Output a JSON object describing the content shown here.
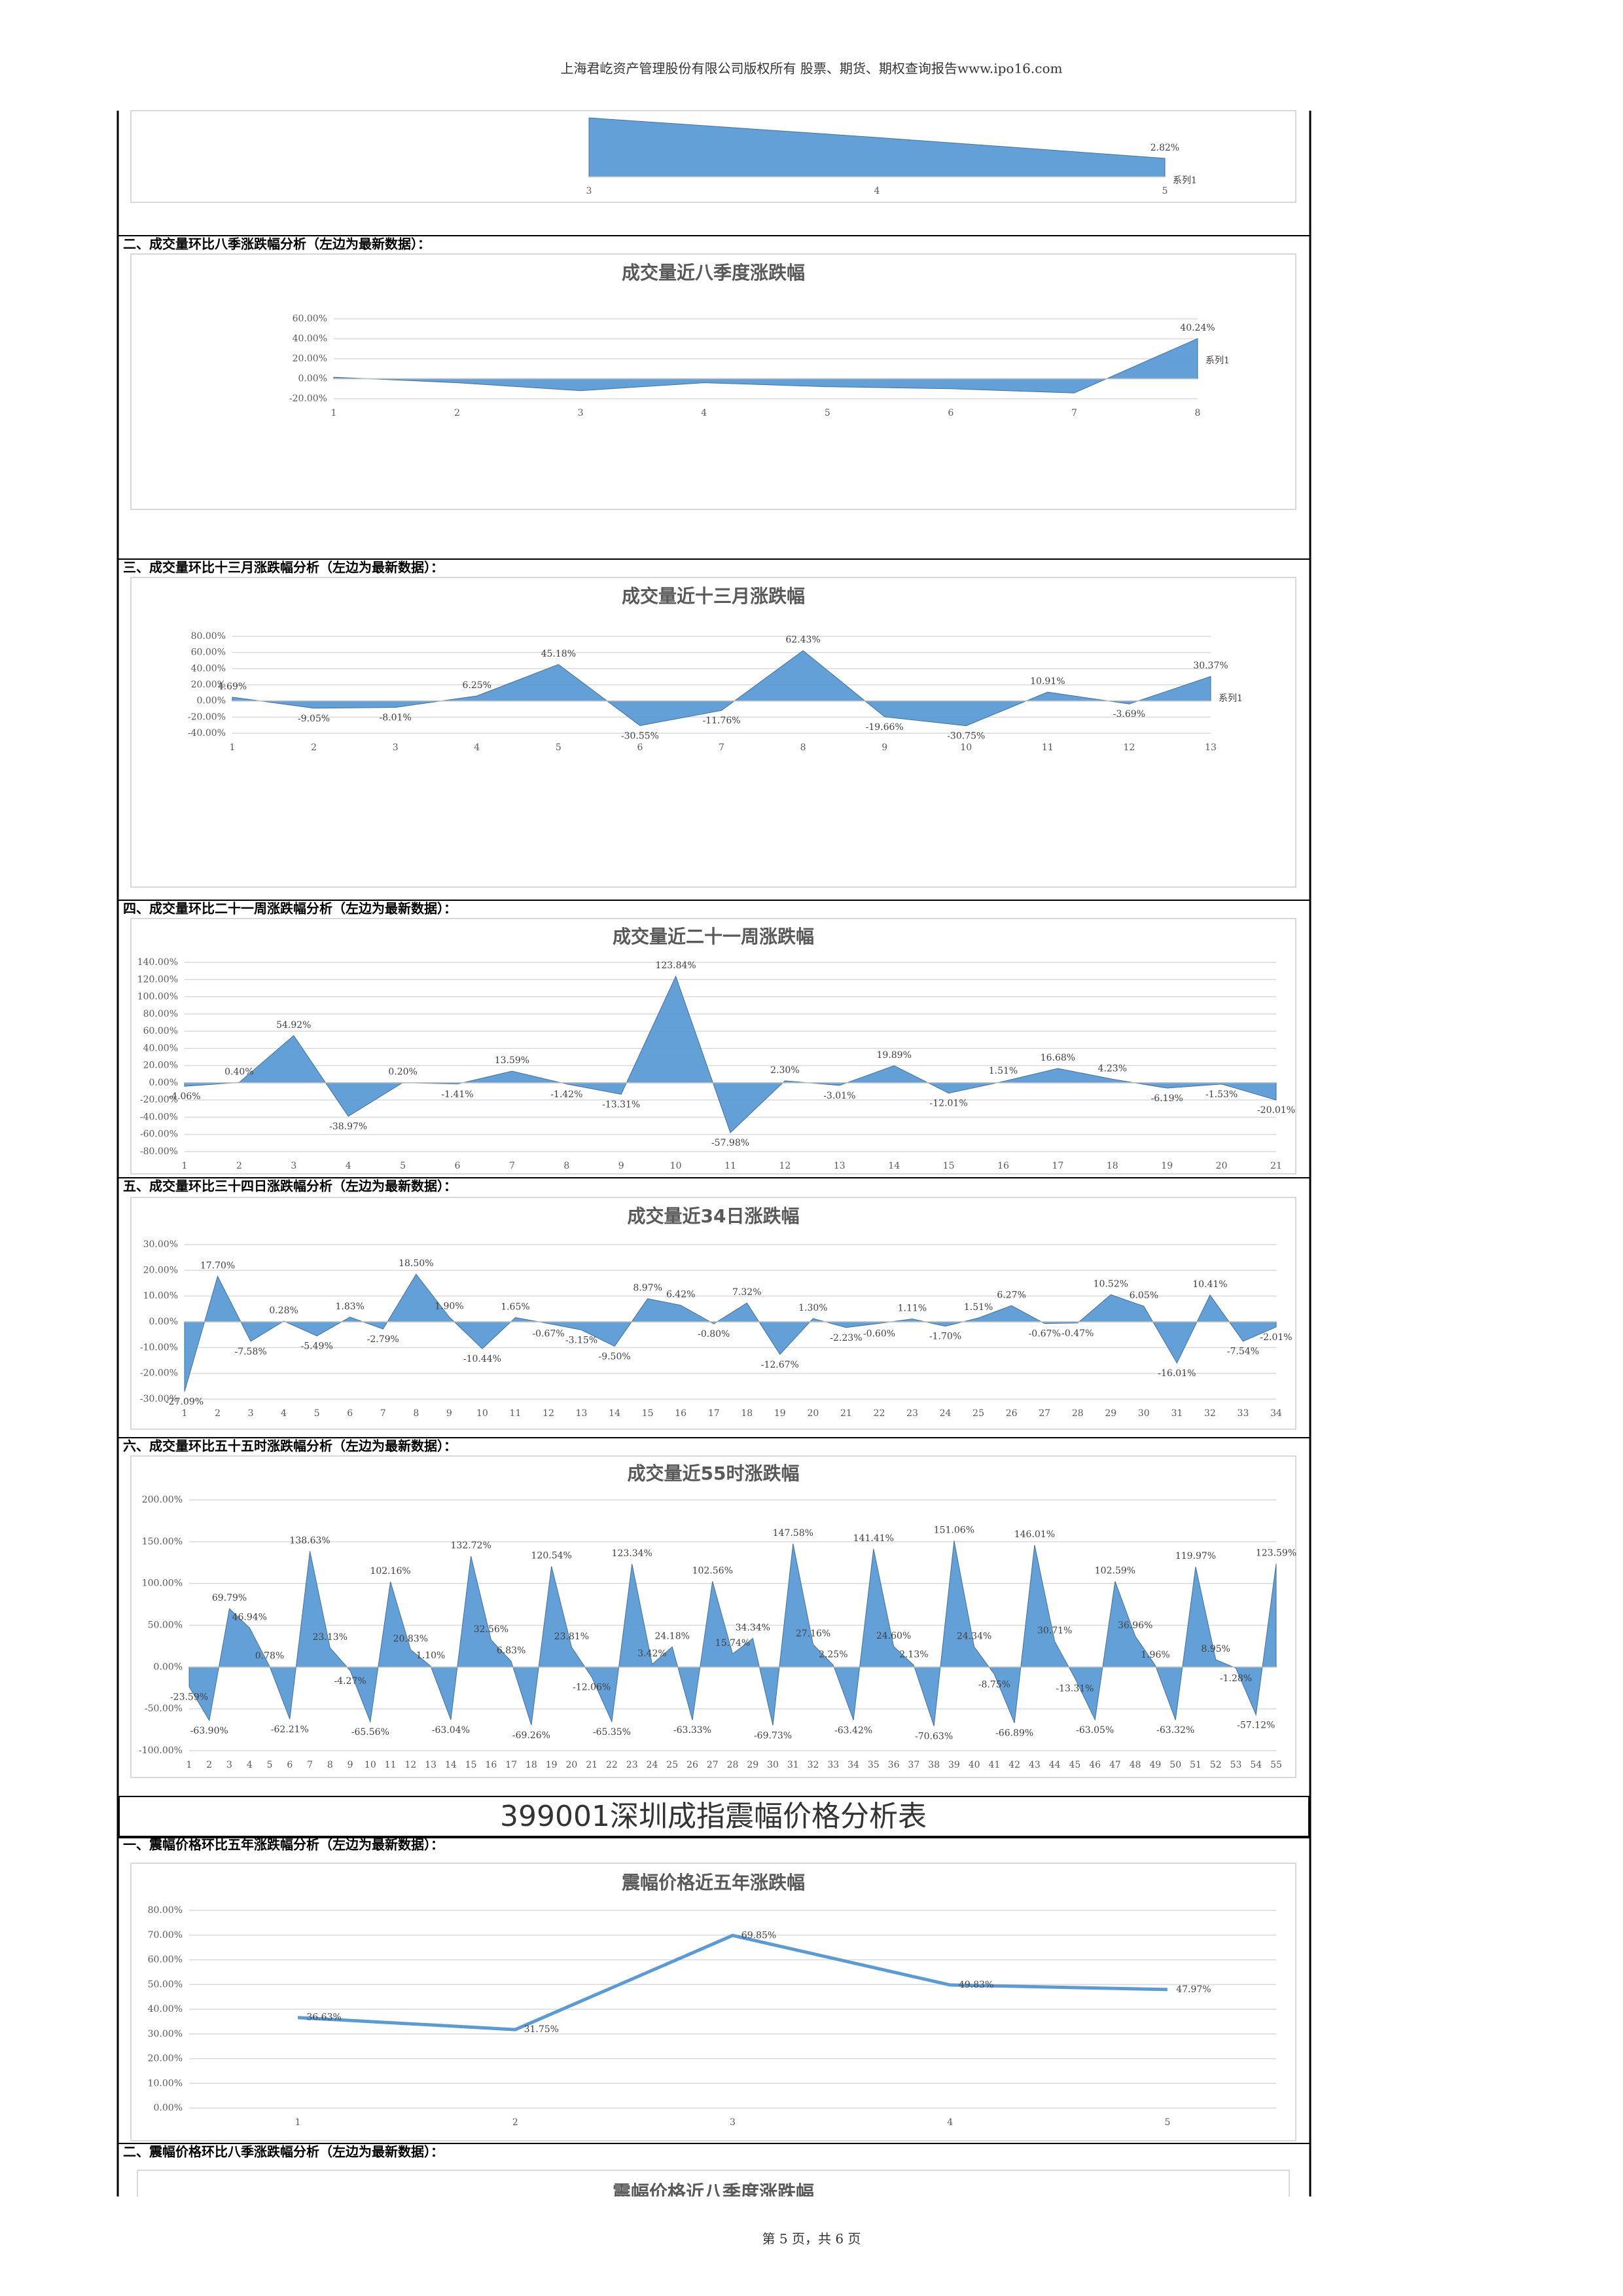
{
  "header": "上海君屹资产管理股份有限公司版权所有 股票、期货、期权查询报告www.ipo16.com",
  "sections": [
    "二、成交量环比八季涨跌幅分析（左边为最新数据）：",
    "三、成交量环比十三月涨跌幅分析（左边为最新数据）：",
    "四、成交量环比二十一周涨跌幅分析（左边为最新数据）：",
    "五、成交量环比三十四日涨跌幅分析（左边为最新数据）：",
    "六、成交量环比五十五时涨跌幅分析（左边为最新数据）：",
    "一、震幅价格环比五年涨跌幅分析（左边为最新数据）：",
    "二、震幅价格环比八季涨跌幅分析（左边为最新数据）："
  ],
  "report_title": "399001深圳成指震幅价格分析表",
  "footer": "第 5 页，共 6 页",
  "chart_data": [
    {
      "type": "area",
      "series_name": "系列1",
      "color": "#5b9bd5",
      "categories": [
        "3",
        "4",
        "5"
      ],
      "values": [
        9,
        6,
        2.82
      ],
      "value_labels": [
        null,
        null,
        "2.82%"
      ]
    },
    {
      "type": "area",
      "title": "成交量近八季度涨跌幅",
      "series_name": "系列1",
      "color": "#5b9bd5",
      "categories": [
        "1",
        "2",
        "3",
        "4",
        "5",
        "6",
        "7",
        "8"
      ],
      "values": [
        1.6,
        -4,
        -12,
        -4,
        -8,
        -10,
        -14.3,
        40.24
      ],
      "value_labels": [
        null,
        null,
        null,
        null,
        null,
        null,
        null,
        "40.24%"
      ],
      "ylim": [
        -20,
        60
      ],
      "yticks": [
        {
          "value": -20,
          "label": "-20.00%"
        },
        {
          "value": 0,
          "label": "0.00%"
        },
        {
          "value": 20,
          "label": "20.00%"
        },
        {
          "value": 40,
          "label": "40.00%"
        },
        {
          "value": 60,
          "label": "60.00%"
        }
      ]
    },
    {
      "type": "area",
      "title": "成交量近十三月涨跌幅",
      "series_name": "系列1",
      "color": "#5b9bd5",
      "categories": [
        "1",
        "2",
        "3",
        "4",
        "5",
        "6",
        "7",
        "8",
        "9",
        "10",
        "11",
        "12",
        "13"
      ],
      "values": [
        4.69,
        -9.05,
        -8.01,
        6.25,
        45.18,
        -30.55,
        -11.76,
        62.43,
        -19.66,
        -30.75,
        10.91,
        -3.69,
        30.37
      ],
      "value_labels": [
        "4.69%",
        "-9.05%",
        "-8.01%",
        "6.25%",
        "45.18%",
        "-30.55%",
        "-11.76%",
        "62.43%",
        "-19.66%",
        "-30.75%",
        "10.91%",
        "-3.69%",
        "30.37%"
      ],
      "ylim": [
        -40,
        80
      ],
      "yticks": [
        {
          "value": -40,
          "label": "-40.00%"
        },
        {
          "value": -20,
          "label": "-20.00%"
        },
        {
          "value": 0,
          "label": "0.00%"
        },
        {
          "value": 20,
          "label": "20.00%"
        },
        {
          "value": 40,
          "label": "40.00%"
        },
        {
          "value": 60,
          "label": "60.00%"
        },
        {
          "value": 80,
          "label": "80.00%"
        }
      ]
    },
    {
      "type": "area",
      "title": "成交量近二十一周涨跌幅",
      "color": "#5b9bd5",
      "categories": [
        "1",
        "2",
        "3",
        "4",
        "5",
        "6",
        "7",
        "8",
        "9",
        "10",
        "11",
        "12",
        "13",
        "14",
        "15",
        "16",
        "17",
        "18",
        "19",
        "20",
        "21"
      ],
      "values": [
        -4.06,
        0.4,
        54.92,
        -38.97,
        0.2,
        -1.41,
        13.59,
        -1.42,
        -13.31,
        123.84,
        -57.98,
        2.3,
        -3.01,
        19.89,
        -12.01,
        1.51,
        16.68,
        4.23,
        -6.19,
        -1.53,
        -20.01
      ],
      "value_labels": [
        "-4.06%",
        "0.40%",
        "54.92%",
        "-38.97%",
        "0.20%",
        "-1.41%",
        "13.59%",
        "-1.42%",
        "-13.31%",
        "123.84%",
        "-57.98%",
        "2.30%",
        "-3.01%",
        "19.89%",
        "-12.01%",
        "1.51%",
        "16.68%",
        "4.23%",
        "-6.19%",
        "-1.53%",
        "-20.01%"
      ],
      "ylim": [
        -80,
        140
      ],
      "yticks": [
        {
          "value": -80,
          "label": "-80.00%"
        },
        {
          "value": -60,
          "label": "-60.00%"
        },
        {
          "value": -40,
          "label": "-40.00%"
        },
        {
          "value": -20,
          "label": "-20.00%"
        },
        {
          "value": 0,
          "label": "0.00%"
        },
        {
          "value": 20,
          "label": "20.00%"
        },
        {
          "value": 40,
          "label": "40.00%"
        },
        {
          "value": 60,
          "label": "60.00%"
        },
        {
          "value": 80,
          "label": "80.00%"
        },
        {
          "value": 100,
          "label": "100.00%"
        },
        {
          "value": 120,
          "label": "120.00%"
        },
        {
          "value": 140,
          "label": "140.00%"
        }
      ]
    },
    {
      "type": "area",
      "title": "成交量近34日涨跌幅",
      "color": "#5b9bd5",
      "categories": [
        "1",
        "2",
        "3",
        "4",
        "5",
        "6",
        "7",
        "8",
        "9",
        "10",
        "11",
        "12",
        "13",
        "14",
        "15",
        "16",
        "17",
        "18",
        "19",
        "20",
        "21",
        "22",
        "23",
        "24",
        "25",
        "26",
        "27",
        "28",
        "29",
        "30",
        "31",
        "32",
        "33",
        "34"
      ],
      "values": [
        -27.09,
        17.7,
        -7.58,
        0.28,
        -5.49,
        1.83,
        -2.79,
        18.5,
        1.9,
        -10.44,
        1.65,
        -0.67,
        -3.15,
        -9.5,
        8.97,
        6.42,
        -0.8,
        7.32,
        -12.67,
        1.3,
        -2.23,
        -0.6,
        1.11,
        -1.7,
        1.51,
        6.27,
        -0.67,
        -0.47,
        10.52,
        6.05,
        -16.01,
        10.41,
        -7.54,
        -2.01
      ],
      "value_labels": [
        "-27.09%",
        "17.70%",
        "-7.58%",
        "0.28%",
        "-5.49%",
        "1.83%",
        "-2.79%",
        "18.50%",
        "1.90%",
        "-10.44%",
        "1.65%",
        "-0.67%",
        "-3.15%",
        "-9.50%",
        "8.97%",
        "6.42%",
        "-0.80%",
        "7.32%",
        "-12.67%",
        "1.30%",
        "-2.23%",
        "-0.60%",
        "1.11%",
        "-1.70%",
        "1.51%",
        "6.27%",
        "-0.67%",
        "-0.47%",
        "10.52%",
        "6.05%",
        "-16.01%",
        "10.41%",
        "-7.54%",
        "-2.01%"
      ],
      "ylim": [
        -30,
        30
      ],
      "yticks": [
        {
          "value": -30,
          "label": "-30.00%"
        },
        {
          "value": -20,
          "label": "-20.00%"
        },
        {
          "value": -10,
          "label": "-10.00%"
        },
        {
          "value": 0,
          "label": "0.00%"
        },
        {
          "value": 10,
          "label": "10.00%"
        },
        {
          "value": 20,
          "label": "20.00%"
        },
        {
          "value": 30,
          "label": "30.00%"
        }
      ]
    },
    {
      "type": "area",
      "title": "成交量近55时涨跌幅",
      "color": "#5b9bd5",
      "categories": [
        "1",
        "2",
        "3",
        "4",
        "5",
        "6",
        "7",
        "8",
        "9",
        "10",
        "11",
        "12",
        "13",
        "14",
        "15",
        "16",
        "17",
        "18",
        "19",
        "20",
        "21",
        "22",
        "23",
        "24",
        "25",
        "26",
        "27",
        "28",
        "29",
        "30",
        "31",
        "32",
        "33",
        "34",
        "35",
        "36",
        "37",
        "38",
        "39",
        "40",
        "41",
        "42",
        "43",
        "44",
        "45",
        "46",
        "47",
        "48",
        "49",
        "50",
        "51",
        "52",
        "53",
        "54",
        "55"
      ],
      "values": [
        -23.59,
        -63.9,
        69.79,
        46.94,
        0.78,
        -62.21,
        138.63,
        23.13,
        -4.27,
        -65.56,
        102.16,
        20.83,
        1.1,
        -63.04,
        132.72,
        32.56,
        6.83,
        -69.26,
        120.54,
        23.81,
        -12.06,
        -65.35,
        123.34,
        3.42,
        24.18,
        -63.33,
        102.56,
        15.74,
        34.34,
        -69.73,
        147.58,
        27.16,
        2.25,
        -63.42,
        141.41,
        24.6,
        2.13,
        -70.63,
        151.06,
        24.34,
        -8.75,
        -66.89,
        146.01,
        30.71,
        -13.31,
        -63.05,
        102.59,
        36.96,
        1.96,
        -63.32,
        119.97,
        8.95,
        -1.28,
        -57.12,
        123.59
      ],
      "value_labels": [
        "-23.59%",
        "-63.90%",
        "69.79%",
        "46.94%",
        "0.78%",
        "-62.21%",
        "138.63%",
        "23.13%",
        "-4.27%",
        "-65.56%",
        "102.16%",
        "20.83%",
        "1.10%",
        "-63.04%",
        "132.72%",
        "32.56%",
        "6.83%",
        "-69.26%",
        "120.54%",
        "23.81%",
        "-12.06%",
        "-65.35%",
        "123.34%",
        "3.42%",
        "24.18%",
        "-63.33%",
        "102.56%",
        "15.74%",
        "34.34%",
        "-69.73%",
        "147.58%",
        "27.16%",
        "2.25%",
        "-63.42%",
        "141.41%",
        "24.60%",
        "2.13%",
        "-70.63%",
        "151.06%",
        "24.34%",
        "-8.75%",
        "-66.89%",
        "146.01%",
        "30.71%",
        "-13.31%",
        "-63.05%",
        "102.59%",
        "36.96%",
        "1.96%",
        "-63.32%",
        "119.97%",
        "8.95%",
        "-1.28%",
        "-57.12%",
        "123.59%"
      ],
      "ylim": [
        -100,
        200
      ],
      "yticks": [
        {
          "value": -100,
          "label": "-100.00%"
        },
        {
          "value": -50,
          "label": "-50.00%"
        },
        {
          "value": 0,
          "label": "0.00%"
        },
        {
          "value": 50,
          "label": "50.00%"
        },
        {
          "value": 100,
          "label": "100.00%"
        },
        {
          "value": 150,
          "label": "150.00%"
        },
        {
          "value": 200,
          "label": "200.00%"
        }
      ]
    },
    {
      "type": "line",
      "title": "震幅价格近五年涨跌幅",
      "color": "#5b9bd5",
      "categories": [
        "1",
        "2",
        "3",
        "4",
        "5"
      ],
      "values": [
        36.63,
        31.75,
        69.85,
        49.83,
        47.97
      ],
      "value_labels": [
        "36.63%",
        "31.75%",
        "69.85%",
        "49.83%",
        "47.97%"
      ],
      "ylim": [
        0,
        80
      ],
      "yticks": [
        {
          "value": 0,
          "label": "0.00%"
        },
        {
          "value": 10,
          "label": "10.00%"
        },
        {
          "value": 20,
          "label": "20.00%"
        },
        {
          "value": 30,
          "label": "30.00%"
        },
        {
          "value": 40,
          "label": "40.00%"
        },
        {
          "value": 50,
          "label": "50.00%"
        },
        {
          "value": 60,
          "label": "60.00%"
        },
        {
          "value": 70,
          "label": "70.00%"
        },
        {
          "value": 80,
          "label": "80.00%"
        }
      ]
    },
    {
      "type": "area",
      "title": "震幅价格近八季度涨跌幅",
      "color": "#5b9bd5"
    }
  ]
}
